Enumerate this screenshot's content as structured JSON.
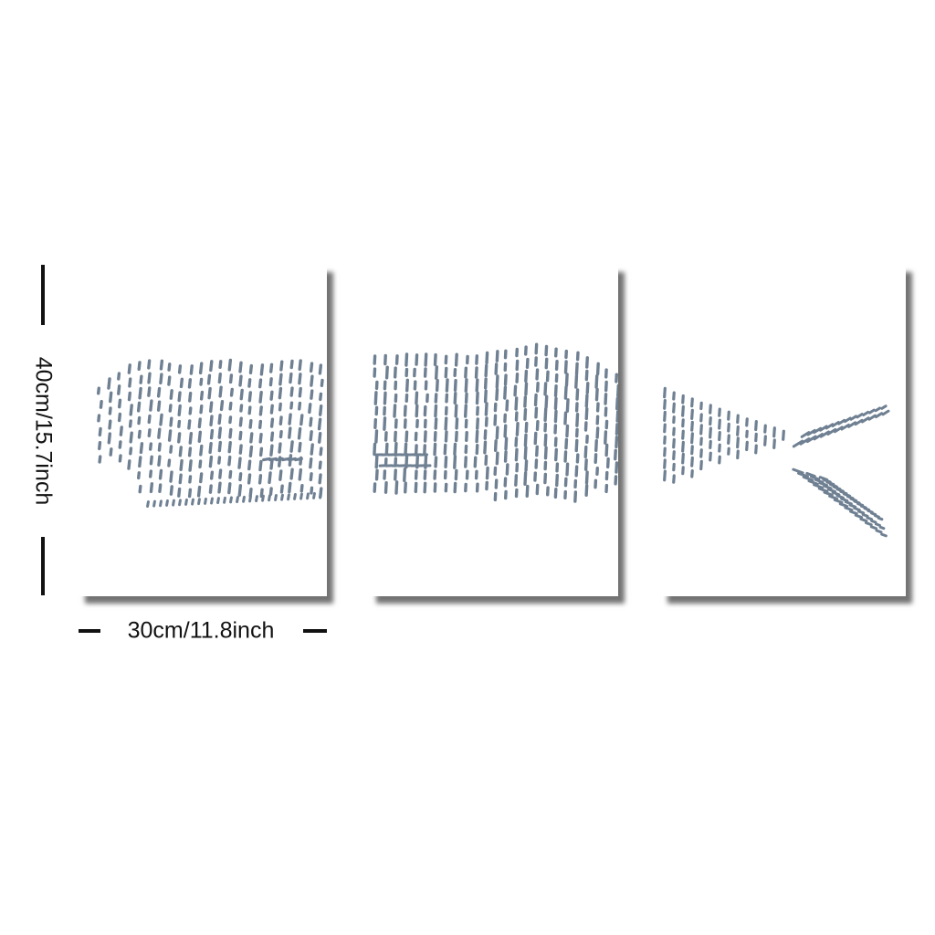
{
  "dimensions": {
    "height_label": "40cm/15.7inch",
    "width_label": "30cm/11.8inch"
  },
  "artwork": {
    "subject": "whale",
    "panels": [
      {
        "part": "head"
      },
      {
        "part": "body"
      },
      {
        "part": "tail"
      }
    ]
  },
  "colors": {
    "ink": "#6f8092",
    "background": "#ffffff",
    "marker": "#111111"
  }
}
